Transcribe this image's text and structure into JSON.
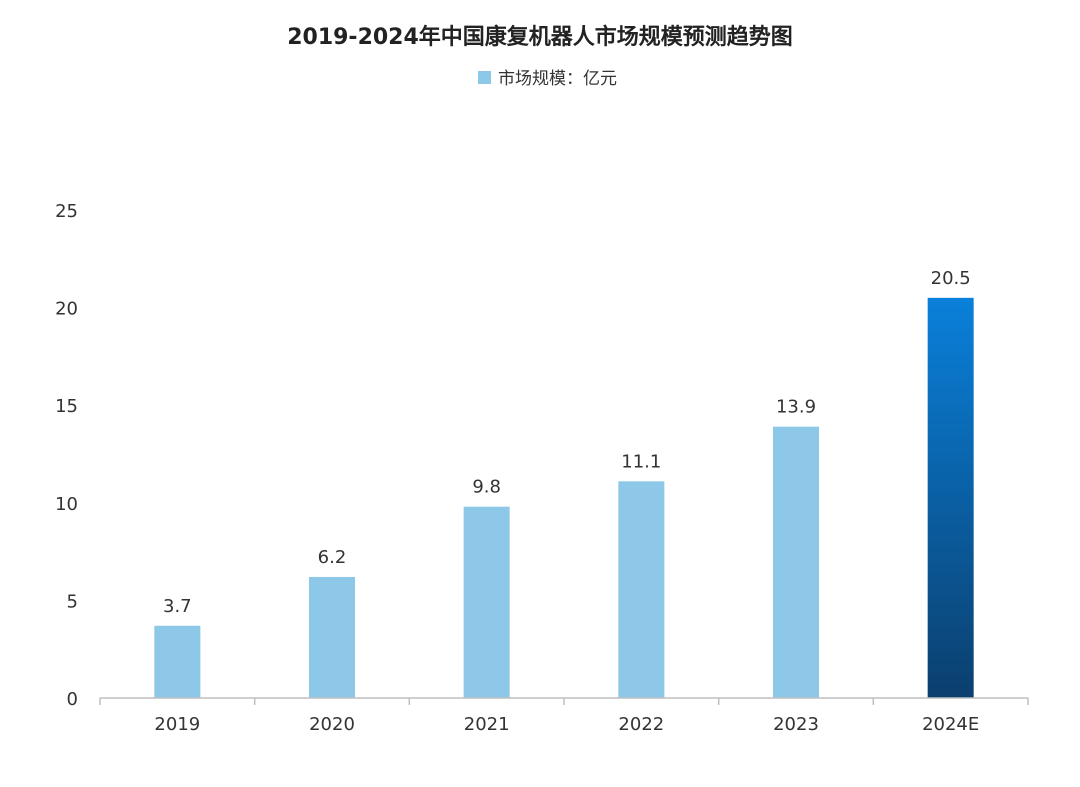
{
  "chart_data": {
    "type": "bar",
    "title": "2019-2024年中国康复机器人市场规模预测趋势图",
    "legend": {
      "label": "市场规模：亿元",
      "placement": "top"
    },
    "categories": [
      "2019",
      "2020",
      "2021",
      "2022",
      "2023",
      "2024E"
    ],
    "series": [
      {
        "name": "市场规模：亿元",
        "values": [
          3.7,
          6.2,
          9.8,
          11.1,
          13.9,
          20.5
        ]
      }
    ],
    "data_labels": [
      "3.7",
      "6.2",
      "9.8",
      "11.1",
      "13.9",
      "20.5"
    ],
    "ylim": [
      0,
      25
    ],
    "yticks": [
      0,
      5,
      10,
      15,
      20,
      25
    ],
    "grid": false,
    "colors": {
      "bar": "#8DC8E8",
      "highlight_top": "#0A80DA",
      "highlight_bottom": "#0B3F6E",
      "axis": "#BFBFBF",
      "text": "#333333"
    }
  }
}
